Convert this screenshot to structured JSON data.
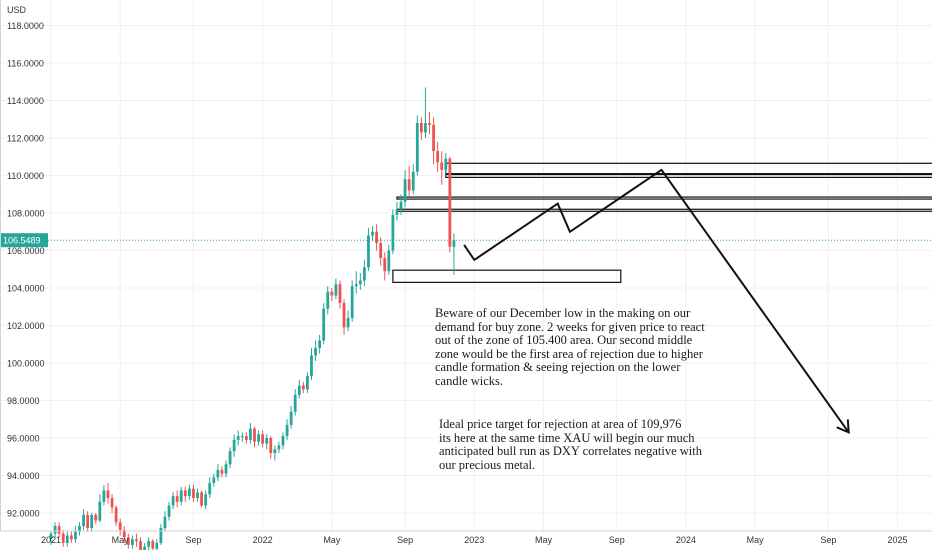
{
  "chart_data": {
    "type": "candlestick",
    "currency_label": "USD",
    "current_price_label": "106.5489",
    "current_price": 106.5489,
    "ylim": [
      90.9,
      119.5
    ],
    "y_ticks": [
      "92.0000",
      "94.0000",
      "96.0000",
      "98.0000",
      "100.0000",
      "102.0000",
      "104.0000",
      "106.0000",
      "108.0000",
      "110.0000",
      "112.0000",
      "114.0000",
      "116.0000",
      "118.0000"
    ],
    "y_tick_values": [
      92,
      94,
      96,
      98,
      100,
      102,
      104,
      106,
      108,
      110,
      112,
      114,
      116,
      118
    ],
    "x_tick_labels": [
      "2021",
      "May",
      "Sep",
      "2022",
      "May",
      "Sep",
      "2023",
      "May",
      "Sep",
      "2024",
      "May",
      "Sep",
      "2025"
    ],
    "x_tick_weeks": [
      0,
      17,
      35,
      52,
      69,
      87,
      104,
      121,
      139,
      156,
      173,
      191,
      208
    ],
    "candles": [
      [
        90.6,
        90.9,
        90.3,
        91.0
      ],
      [
        90.9,
        91.3,
        90.7,
        91.5
      ],
      [
        91.3,
        90.9,
        90.7,
        91.5
      ],
      [
        90.9,
        90.4,
        90.2,
        91.1
      ],
      [
        90.4,
        90.8,
        90.2,
        91.0
      ],
      [
        90.8,
        90.6,
        90.4,
        91.0
      ],
      [
        90.6,
        91.0,
        90.4,
        91.3
      ],
      [
        91.0,
        91.3,
        90.8,
        91.5
      ],
      [
        91.3,
        91.9,
        91.1,
        92.2
      ],
      [
        91.9,
        91.2,
        91.0,
        92.1
      ],
      [
        91.2,
        91.9,
        91.0,
        92.0
      ],
      [
        91.9,
        91.6,
        91.4,
        92.0
      ],
      [
        91.6,
        92.6,
        91.5,
        93.0
      ],
      [
        92.6,
        93.2,
        92.4,
        93.5
      ],
      [
        93.2,
        92.8,
        92.5,
        93.6
      ],
      [
        92.8,
        92.3,
        92.0,
        93.0
      ],
      [
        92.3,
        91.5,
        91.3,
        92.4
      ],
      [
        91.5,
        91.1,
        90.8,
        91.7
      ],
      [
        91.1,
        90.7,
        90.4,
        91.3
      ],
      [
        90.7,
        90.3,
        90.1,
        90.9
      ],
      [
        90.3,
        90.6,
        90.1,
        90.8
      ],
      [
        90.6,
        90.5,
        90.2,
        90.9
      ],
      [
        90.5,
        90.0,
        89.8,
        90.7
      ],
      [
        90.0,
        90.2,
        89.7,
        90.4
      ],
      [
        90.2,
        90.5,
        90.0,
        90.7
      ],
      [
        90.5,
        90.1,
        89.9,
        90.6
      ],
      [
        90.1,
        90.4,
        89.9,
        90.6
      ],
      [
        90.4,
        91.2,
        90.3,
        91.4
      ],
      [
        91.2,
        91.8,
        91.0,
        92.1
      ],
      [
        91.8,
        92.4,
        91.6,
        92.6
      ],
      [
        92.4,
        92.9,
        92.2,
        93.1
      ],
      [
        92.9,
        92.6,
        92.3,
        93.2
      ],
      [
        92.6,
        93.2,
        92.4,
        93.4
      ],
      [
        93.2,
        92.9,
        92.6,
        93.4
      ],
      [
        92.9,
        93.3,
        92.7,
        93.5
      ],
      [
        93.3,
        92.8,
        92.6,
        93.5
      ],
      [
        92.8,
        93.1,
        92.6,
        93.3
      ],
      [
        93.1,
        92.4,
        92.3,
        93.2
      ],
      [
        92.4,
        93.0,
        92.2,
        93.2
      ],
      [
        93.0,
        93.6,
        92.8,
        93.9
      ],
      [
        93.6,
        93.9,
        93.4,
        94.1
      ],
      [
        93.9,
        94.3,
        93.7,
        94.6
      ],
      [
        94.3,
        94.1,
        93.9,
        94.5
      ],
      [
        94.1,
        94.6,
        93.9,
        94.8
      ],
      [
        94.6,
        95.3,
        94.4,
        95.5
      ],
      [
        95.3,
        95.9,
        95.0,
        96.2
      ],
      [
        95.9,
        96.1,
        95.6,
        96.4
      ],
      [
        96.1,
        96.1,
        95.8,
        96.3
      ],
      [
        96.1,
        95.9,
        95.7,
        96.3
      ],
      [
        95.9,
        96.5,
        95.7,
        96.8
      ],
      [
        96.5,
        95.8,
        95.5,
        96.6
      ],
      [
        95.8,
        96.2,
        95.6,
        96.4
      ],
      [
        96.2,
        95.7,
        95.5,
        96.4
      ],
      [
        95.7,
        96.0,
        95.4,
        96.2
      ],
      [
        96.0,
        95.2,
        94.9,
        96.1
      ],
      [
        95.2,
        95.4,
        94.8,
        95.6
      ],
      [
        95.4,
        95.6,
        95.2,
        95.8
      ],
      [
        95.6,
        96.1,
        95.4,
        96.3
      ],
      [
        96.1,
        96.7,
        95.9,
        97.0
      ],
      [
        96.7,
        97.4,
        96.5,
        97.7
      ],
      [
        97.4,
        98.3,
        97.2,
        98.6
      ],
      [
        98.3,
        98.8,
        98.1,
        99.1
      ],
      [
        98.8,
        98.6,
        98.4,
        99.0
      ],
      [
        98.6,
        99.3,
        98.4,
        99.5
      ],
      [
        99.3,
        100.4,
        99.1,
        100.8
      ],
      [
        100.4,
        100.8,
        100.1,
        101.2
      ],
      [
        100.8,
        101.2,
        100.5,
        101.5
      ],
      [
        101.2,
        102.9,
        101.0,
        103.2
      ],
      [
        102.9,
        103.8,
        102.6,
        104.1
      ],
      [
        103.8,
        103.6,
        103.3,
        104.0
      ],
      [
        103.6,
        104.2,
        103.4,
        104.5
      ],
      [
        104.2,
        103.2,
        102.9,
        104.4
      ],
      [
        103.2,
        101.9,
        101.5,
        103.4
      ],
      [
        101.9,
        102.4,
        101.7,
        102.8
      ],
      [
        102.4,
        104.1,
        102.2,
        104.4
      ],
      [
        104.1,
        104.2,
        103.7,
        104.9
      ],
      [
        104.2,
        104.4,
        103.9,
        104.8
      ],
      [
        104.4,
        105.1,
        104.1,
        105.5
      ],
      [
        105.1,
        106.8,
        104.9,
        107.2
      ],
      [
        106.8,
        107.0,
        106.5,
        107.3
      ],
      [
        107.0,
        106.4,
        106.0,
        107.4
      ],
      [
        106.4,
        105.6,
        105.2,
        106.7
      ],
      [
        105.6,
        104.9,
        104.4,
        105.9
      ],
      [
        104.9,
        106.0,
        104.7,
        106.3
      ],
      [
        106.0,
        107.9,
        105.8,
        108.2
      ],
      [
        107.9,
        108.2,
        107.6,
        108.6
      ],
      [
        108.2,
        108.6,
        107.9,
        109.0
      ],
      [
        108.6,
        109.8,
        108.3,
        110.3
      ],
      [
        109.8,
        109.2,
        108.9,
        110.5
      ],
      [
        109.2,
        110.2,
        109.0,
        110.6
      ],
      [
        110.2,
        112.8,
        110.0,
        113.2
      ],
      [
        112.8,
        112.3,
        111.9,
        113.1
      ],
      [
        112.3,
        112.8,
        112.0,
        114.7
      ],
      [
        112.8,
        112.7,
        112.2,
        113.4
      ],
      [
        112.7,
        111.3,
        110.6,
        113.1
      ],
      [
        111.3,
        110.7,
        110.2,
        111.8
      ],
      [
        110.7,
        110.3,
        109.5,
        111.3
      ],
      [
        110.3,
        110.9,
        110.0,
        111.2
      ],
      [
        110.9,
        106.2,
        105.9,
        111.0
      ],
      [
        106.2,
        106.55,
        104.7,
        106.9
      ]
    ],
    "up_color": "#26a69a",
    "down_color": "#ef5350",
    "zones": [
      {
        "week_from": 97,
        "price_low": 110.05,
        "price_high": 110.65,
        "extends_right": true
      },
      {
        "week_from": 97,
        "price_low": 109.9,
        "price_high": 110.1,
        "extends_right": true
      },
      {
        "week_from": 85,
        "price_low": 108.75,
        "price_high": 108.85,
        "extends_right": true
      },
      {
        "week_from": 85,
        "price_low": 108.1,
        "price_high": 108.2,
        "extends_right": true
      },
      {
        "week_from": 84,
        "price_low": 104.3,
        "price_high": 104.95,
        "week_to": 140,
        "extends_right": false
      }
    ],
    "projection_path": [
      {
        "week": 101.5,
        "price": 106.3
      },
      {
        "week": 104.0,
        "price": 105.5
      },
      {
        "week": 124.5,
        "price": 108.5
      },
      {
        "week": 127.5,
        "price": 107.0
      },
      {
        "week": 150.0,
        "price": 110.3
      },
      {
        "week": 196.0,
        "price": 96.3
      }
    ],
    "annotations": [
      "Beware of our December low in the making on our\ndemand for buy zone. 2 weeks for given price to react\nout of the zone of 105.400 area. Our second middle\nzone would be the first area of rejection due to higher\ncandle formation & seeing rejection on the lower\ncandle wicks.",
      "Ideal price target for rejection at area of 109,976\nits here at the same time XAU will begin our much\nanticipated bull run as DXY correlates negative with\nour precious metal."
    ]
  }
}
